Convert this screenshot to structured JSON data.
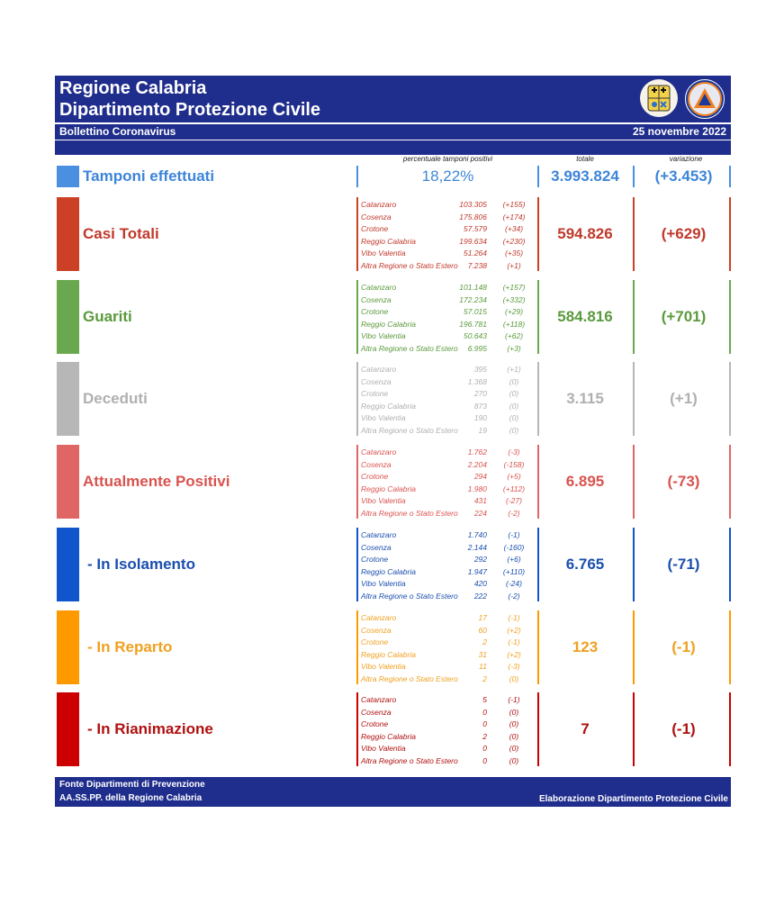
{
  "header": {
    "title_line1": "Regione Calabria",
    "title_line2": "Dipartimento Protezione Civile",
    "subtitle": "Bollettino Coronavirus",
    "date": "25 novembre 2022"
  },
  "columns": {
    "perc_label": "percentuale tamponi positivi",
    "total_label": "totale",
    "var_label": "variazione"
  },
  "tamponi": {
    "label": "Tamponi effettuati",
    "percent": "18,22%",
    "total": "3.993.824",
    "variation": "(+3.453)",
    "color": "#4a8fe0"
  },
  "sections": [
    {
      "key": "casi",
      "label": "Casi Totali",
      "color": "#cc4125",
      "text_color": "#c0392b",
      "total": "594.826",
      "variation": "(+629)",
      "rows": [
        {
          "name": "Catanzaro",
          "value": "103.305",
          "delta": "(+155)"
        },
        {
          "name": "Cosenza",
          "value": "175.806",
          "delta": "(+174)"
        },
        {
          "name": "Crotone",
          "value": "57.579",
          "delta": "(+34)"
        },
        {
          "name": "Reggio Calabria",
          "value": "199.634",
          "delta": "(+230)"
        },
        {
          "name": "Vibo Valentia",
          "value": "51.264",
          "delta": "(+35)"
        },
        {
          "name": "Altra Regione o Stato Estero",
          "value": "7.238",
          "delta": "(+1)"
        }
      ]
    },
    {
      "key": "guariti",
      "label": "Guariti",
      "color": "#6aa84f",
      "text_color": "#5a9a3c",
      "total": "584.816",
      "variation": "(+701)",
      "rows": [
        {
          "name": "Catanzaro",
          "value": "101.148",
          "delta": "(+157)"
        },
        {
          "name": "Cosenza",
          "value": "172.234",
          "delta": "(+332)"
        },
        {
          "name": "Crotone",
          "value": "57.015",
          "delta": "(+29)"
        },
        {
          "name": "Reggio Calabria",
          "value": "196.781",
          "delta": "(+118)"
        },
        {
          "name": "Vibo Valentia",
          "value": "50.643",
          "delta": "(+62)"
        },
        {
          "name": "Altra Regione o Stato Estero",
          "value": "6.995",
          "delta": "(+3)"
        }
      ]
    },
    {
      "key": "deceduti",
      "label": "Deceduti",
      "color": "#b7b7b7",
      "text_color": "#b0b0b0",
      "total": "3.115",
      "variation": "(+1)",
      "rows": [
        {
          "name": "Catanzaro",
          "value": "395",
          "delta": "(+1)"
        },
        {
          "name": "Cosenza",
          "value": "1.368",
          "delta": "(0)"
        },
        {
          "name": "Crotone",
          "value": "270",
          "delta": "(0)"
        },
        {
          "name": "Reggio Calabria",
          "value": "873",
          "delta": "(0)"
        },
        {
          "name": "Vibo Valentia",
          "value": "190",
          "delta": "(0)"
        },
        {
          "name": "Altra Regione o Stato Estero",
          "value": "19",
          "delta": "(0)"
        }
      ]
    },
    {
      "key": "positivi",
      "label": "Attualmente Positivi",
      "color": "#e06666",
      "text_color": "#d9534f",
      "total": "6.895",
      "variation": "(-73)",
      "rows": [
        {
          "name": "Catanzaro",
          "value": "1.762",
          "delta": "(-3)"
        },
        {
          "name": "Cosenza",
          "value": "2.204",
          "delta": "(-158)"
        },
        {
          "name": "Crotone",
          "value": "294",
          "delta": "(+5)"
        },
        {
          "name": "Reggio Calabria",
          "value": "1.980",
          "delta": "(+112)"
        },
        {
          "name": "Vibo Valentia",
          "value": "431",
          "delta": "(-27)"
        },
        {
          "name": "Altra Regione o Stato Estero",
          "value": "224",
          "delta": "(-2)"
        }
      ]
    },
    {
      "key": "isolamento",
      "label": "- In Isolamento",
      "color": "#1155cc",
      "text_color": "#1a4fb0",
      "total": "6.765",
      "variation": "(-71)",
      "rows": [
        {
          "name": "Catanzaro",
          "value": "1.740",
          "delta": "(-1)"
        },
        {
          "name": "Cosenza",
          "value": "2.144",
          "delta": "(-160)"
        },
        {
          "name": "Crotone",
          "value": "292",
          "delta": "(+6)"
        },
        {
          "name": "Reggio Calabria",
          "value": "1.947",
          "delta": "(+110)"
        },
        {
          "name": "Vibo Valentia",
          "value": "420",
          "delta": "(-24)"
        },
        {
          "name": "Altra Regione o Stato Estero",
          "value": "222",
          "delta": "(-2)"
        }
      ]
    },
    {
      "key": "reparto",
      "label": "- In Reparto",
      "color": "#ff9900",
      "text_color": "#f0a020",
      "total": "123",
      "variation": "(-1)",
      "rows": [
        {
          "name": "Catanzaro",
          "value": "17",
          "delta": "(-1)"
        },
        {
          "name": "Cosenza",
          "value": "60",
          "delta": "(+2)"
        },
        {
          "name": "Crotone",
          "value": "2",
          "delta": "(-1)"
        },
        {
          "name": "Reggio Calabria",
          "value": "31",
          "delta": "(+2)"
        },
        {
          "name": "Vibo Valentia",
          "value": "11",
          "delta": "(-3)"
        },
        {
          "name": "Altra Regione o Stato Estero",
          "value": "2",
          "delta": "(0)"
        }
      ]
    },
    {
      "key": "rianimazione",
      "label": "- In Rianimazione",
      "color": "#cc0000",
      "text_color": "#b01010",
      "total": "7",
      "variation": "(-1)",
      "rows": [
        {
          "name": "Catanzaro",
          "value": "5",
          "delta": "(-1)"
        },
        {
          "name": "Cosenza",
          "value": "0",
          "delta": "(0)"
        },
        {
          "name": "Crotone",
          "value": "0",
          "delta": "(0)"
        },
        {
          "name": "Reggio Calabria",
          "value": "2",
          "delta": "(0)"
        },
        {
          "name": "Vibo Valentia",
          "value": "0",
          "delta": "(0)"
        },
        {
          "name": "Altra Regione o Stato Estero",
          "value": "0",
          "delta": "(0)"
        }
      ]
    }
  ],
  "footer": {
    "source_line1": "Fonte Dipartimenti di Prevenzione",
    "source_line2": "AA.SS.PP.  della Regione Calabria",
    "credit": "Elaborazione Dipartimento Protezione Civile"
  }
}
